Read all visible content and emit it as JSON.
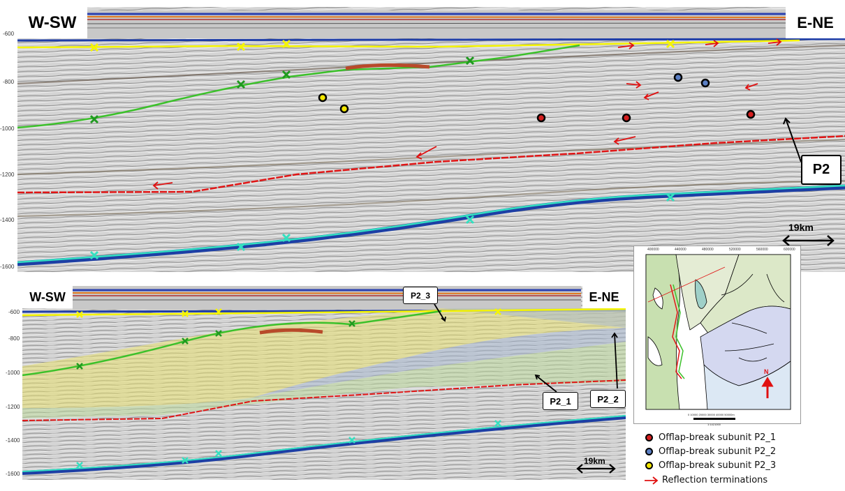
{
  "top_panel": {
    "left_direction": "W-SW",
    "right_direction": "E-NE",
    "depth_ticks": [
      "-600",
      "-800",
      "-1000",
      "-1200",
      "-1400",
      "-1600"
    ],
    "unit_callout": "P2",
    "scale_label": "19km"
  },
  "bottom_panel": {
    "left_direction": "W-SW",
    "right_direction": "E-NE",
    "depth_ticks": [
      "-600",
      "-800",
      "-1000",
      "-1200",
      "-1400",
      "-1600"
    ],
    "callouts": {
      "p2_3": "P2_3",
      "p2_1": "P2_1",
      "p2_2": "P2_2"
    },
    "scale_label": "19km"
  },
  "inset_map": {
    "x_ticks": [
      "400000",
      "440000",
      "480000",
      "520000",
      "560000",
      "600000"
    ],
    "north_label": "N",
    "scale_text": "0 10000 20000 30000 40000 50000m",
    "scale_ratio": "1:1421000"
  },
  "legend": {
    "items": [
      {
        "label": "Offlap-break subunit P2_1",
        "color": "#d41f1f"
      },
      {
        "label": "Offlap-break subunit P2_2",
        "color": "#5b7fc4"
      },
      {
        "label": "Offlap-break subunit P2_3",
        "color": "#f2e600"
      },
      {
        "label": "Reflection terminations",
        "color": "#e01010"
      }
    ]
  },
  "colors": {
    "yellow_horizon": "#f5f500",
    "green_horizon": "#3bc12a",
    "red_horizon": "#e01515",
    "cyan_horizon": "#34e0c0"
  }
}
